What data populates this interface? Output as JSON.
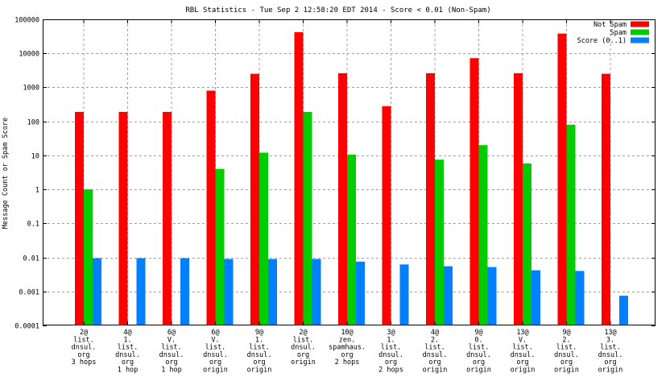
{
  "chart_data": {
    "type": "bar",
    "title": "RBL Statistics - Tue Sep  2 12:58:20 EDT 2014 - Score < 0.01 (Non-Spam)",
    "xlabel": "",
    "ylabel": "Message Count or Spam Score",
    "yscale": "log",
    "ylim": [
      0.0001,
      100000
    ],
    "yticks": [
      "0.0001",
      "0.001",
      "0.01",
      "0.1",
      "1",
      "10",
      "100",
      "1000",
      "10000",
      "100000"
    ],
    "grid": true,
    "legend_position": "top-right",
    "categories": [
      [
        "2@",
        "list.",
        "dnsul.",
        "org",
        "3 hops"
      ],
      [
        "4@",
        "1.",
        "list.",
        "dnsul.",
        "org",
        "1 hop"
      ],
      [
        "6@",
        "V.",
        "list.",
        "dnsul.",
        "org",
        "1 hop"
      ],
      [
        "6@",
        "V.",
        "list.",
        "dnsul.",
        "org",
        "origin"
      ],
      [
        "9@",
        "1.",
        "list.",
        "dnsul.",
        "org",
        "origin"
      ],
      [
        "2@",
        "list.",
        "dnsul.",
        "org",
        "origin"
      ],
      [
        "10@",
        "zen.",
        "spamhaus.",
        "org",
        "2 hops"
      ],
      [
        "3@",
        "1.",
        "list.",
        "dnsul.",
        "org",
        "2 hops"
      ],
      [
        "4@",
        "2.",
        "list.",
        "dnsul.",
        "org",
        "origin"
      ],
      [
        "9@",
        "0.",
        "list.",
        "dnsul.",
        "org",
        "origin"
      ],
      [
        "13@",
        "V.",
        "list.",
        "dnsul.",
        "org",
        "origin"
      ],
      [
        "9@",
        "2.",
        "list.",
        "dnsul.",
        "org",
        "origin"
      ],
      [
        "13@",
        "3.",
        "list.",
        "dnsul.",
        "org",
        "origin"
      ]
    ],
    "series": [
      {
        "name": "Not Spam",
        "color": "#ff0000",
        "values": [
          190,
          190,
          190,
          800,
          2500,
          42000,
          2600,
          280,
          2600,
          7200,
          2600,
          38000,
          2500
        ]
      },
      {
        "name": "Spam",
        "color": "#00cc00",
        "values": [
          1,
          null,
          null,
          4,
          12,
          190,
          10.5,
          null,
          7.5,
          20,
          5.8,
          80,
          null
        ]
      },
      {
        "name": "Score (0..1)",
        "color": "#0080ff",
        "values": [
          0.0095,
          0.0095,
          0.0095,
          0.009,
          0.009,
          0.009,
          0.0075,
          0.0062,
          0.0055,
          0.0052,
          0.0042,
          0.004,
          0.00075
        ]
      }
    ]
  }
}
